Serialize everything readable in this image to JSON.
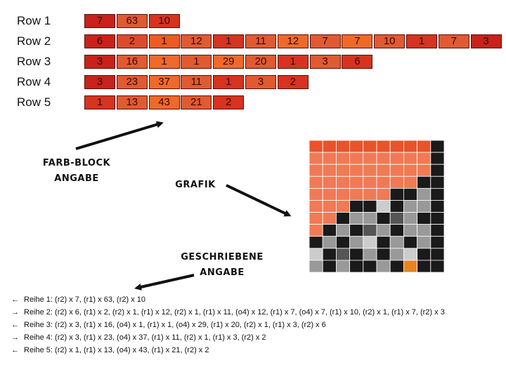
{
  "rows": [
    {
      "label": "Row 1",
      "blocks": [
        {
          "v": "7",
          "c": "#c8221a"
        },
        {
          "v": "63",
          "c": "#e05a32"
        },
        {
          "v": "10",
          "c": "#d63320"
        }
      ]
    },
    {
      "label": "Row 2",
      "blocks": [
        {
          "v": "6",
          "c": "#c8221a"
        },
        {
          "v": "2",
          "c": "#dc4a2c"
        },
        {
          "v": "1",
          "c": "#ee5a22"
        },
        {
          "v": "12",
          "c": "#e05a32"
        },
        {
          "v": "1",
          "c": "#d63320"
        },
        {
          "v": "11",
          "c": "#e05a32"
        },
        {
          "v": "12",
          "c": "#ee6a2a"
        },
        {
          "v": "7",
          "c": "#e05a32"
        },
        {
          "v": "7",
          "c": "#ee6a2a"
        },
        {
          "v": "10",
          "c": "#e05a32"
        },
        {
          "v": "1",
          "c": "#d63320"
        },
        {
          "v": "7",
          "c": "#e05a32"
        },
        {
          "v": "3",
          "c": "#c8221a"
        }
      ]
    },
    {
      "label": "Row 3",
      "blocks": [
        {
          "v": "3",
          "c": "#c8221a"
        },
        {
          "v": "16",
          "c": "#e05a32"
        },
        {
          "v": "1",
          "c": "#ee6a2a"
        },
        {
          "v": "1",
          "c": "#e05a32"
        },
        {
          "v": "29",
          "c": "#ee6a2a"
        },
        {
          "v": "20",
          "c": "#e05a32"
        },
        {
          "v": "1",
          "c": "#d63320"
        },
        {
          "v": "3",
          "c": "#e05a32"
        },
        {
          "v": "6",
          "c": "#d63320"
        }
      ]
    },
    {
      "label": "Row 4",
      "blocks": [
        {
          "v": "3",
          "c": "#c8221a"
        },
        {
          "v": "23",
          "c": "#e05a32"
        },
        {
          "v": "37",
          "c": "#ee6a2a"
        },
        {
          "v": "11",
          "c": "#e05a32"
        },
        {
          "v": "1",
          "c": "#d63320"
        },
        {
          "v": "3",
          "c": "#e05a32"
        },
        {
          "v": "2",
          "c": "#d63320"
        }
      ]
    },
    {
      "label": "Row 5",
      "blocks": [
        {
          "v": "1",
          "c": "#d63320"
        },
        {
          "v": "13",
          "c": "#e05a32"
        },
        {
          "v": "43",
          "c": "#ee6a2a"
        },
        {
          "v": "21",
          "c": "#e05a32"
        },
        {
          "v": "2",
          "c": "#d63320"
        }
      ]
    }
  ],
  "annotations": {
    "farb_line1": "FARB-BLOCK",
    "farb_line2": "ANGABE",
    "grafik": "GRAFIK",
    "geschrieben_line1": "GESCHRIEBENE",
    "geschrieben_line2": "ANGABE"
  },
  "grid_palette": {
    "O": "#f07a55",
    "o": "#f4a080",
    "R": "#e8532c",
    "K": "#1a1a1a",
    "D": "#555555",
    "G": "#999999",
    "L": "#cccccc",
    "W": "#ececec",
    "A": "#e68424"
  },
  "grid_rows": [
    "RRRRRRRRRK",
    "OOOOOOOOOK",
    "OOOOOOOOOK",
    "OOOOOOOOKK",
    "OOOOOOKKGK",
    "OOOKKLKGGK",
    "OOKGGKDGKK",
    "OKGKDGKGGK",
    "KGKGLKGKGK",
    "LKDKGKGLKK",
    "GKGKKGKAKK"
  ],
  "written": [
    {
      "arrow": "←",
      "text": "Reihe 1: (r2) x 7, (r1) x 63, (r2) x 10"
    },
    {
      "arrow": "→",
      "text": "Reihe 2: (r2) x 6, (r1) x 2, (r2) x 1, (r1) x 12, (r2) x 1, (r1) x 11, (o4) x 12, (r1) x 7, (o4) x 7, (r1) x 10, (r2) x 1, (r1) x 7, (r2) x 3"
    },
    {
      "arrow": "←",
      "text": "Reihe 3: (r2) x 3, (r1) x 16, (o4) x 1, (r1) x 1, (o4) x 29, (r1) x 20, (r2) x 1, (r1) x 3, (r2) x 6"
    },
    {
      "arrow": "→",
      "text": "Reihe 4: (r2) x 3, (r1) x 23, (o4) x 37, (r1) x 11, (r2) x 1, (r1) x 3, (r2) x 2"
    },
    {
      "arrow": "←",
      "text": "Reihe 5: (r2) x 1, (r1) x 13, (o4) x 43, (r1) x 21, (r2) x 2"
    }
  ]
}
